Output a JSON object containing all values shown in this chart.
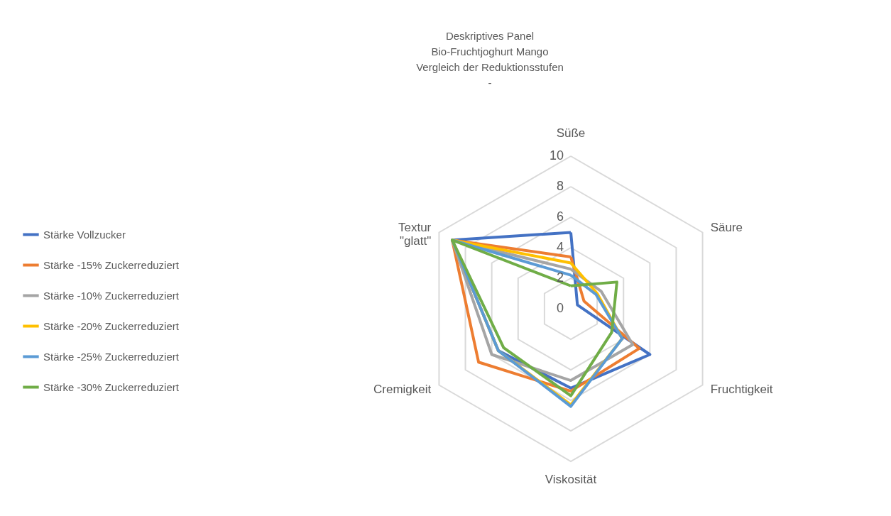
{
  "chart_data": {
    "type": "radar",
    "title": "Deskriptives Panel\nBio-Fruchtjoghurt Mango\nVergleich der Reduktionsstufen\n-",
    "categories": [
      "Süße",
      "Säure",
      "Fruchtigkeit",
      "Viskosität",
      "Cremigkeit",
      "Textur\n\"glatt\""
    ],
    "ylim": [
      0,
      10
    ],
    "yticks": [
      0,
      2,
      4,
      6,
      8,
      10
    ],
    "grid": true,
    "legend": "left",
    "line_style": "solid",
    "series": [
      {
        "name": "Stärke Vollzucker",
        "color": "#4472c4",
        "values": [
          5,
          0.5,
          6,
          5.2,
          5.5,
          9
        ]
      },
      {
        "name": "Stärke -15% Zuckerreduziert",
        "color": "#ed7d31",
        "values": [
          3.4,
          1,
          5.2,
          5.4,
          7,
          9
        ]
      },
      {
        "name": "Stärke -10% Zuckerreduziert",
        "color": "#a5a5a5",
        "values": [
          2.6,
          2.3,
          4.7,
          4.7,
          6,
          9
        ]
      },
      {
        "name": "Stärke -20% Zuckerreduziert",
        "color": "#ffc000",
        "values": [
          3,
          2,
          3.9,
          6.3,
          5.5,
          9
        ]
      },
      {
        "name": "Stärke  -25% Zuckerreduziert",
        "color": "#5b9bd5",
        "values": [
          2.2,
          1.9,
          3.9,
          6.4,
          5.5,
          9
        ]
      },
      {
        "name": "Stärke  -30% Zuckerreduziert",
        "color": "#70ad47",
        "values": [
          1.5,
          3.5,
          3.1,
          5.7,
          5.1,
          9
        ]
      }
    ]
  }
}
